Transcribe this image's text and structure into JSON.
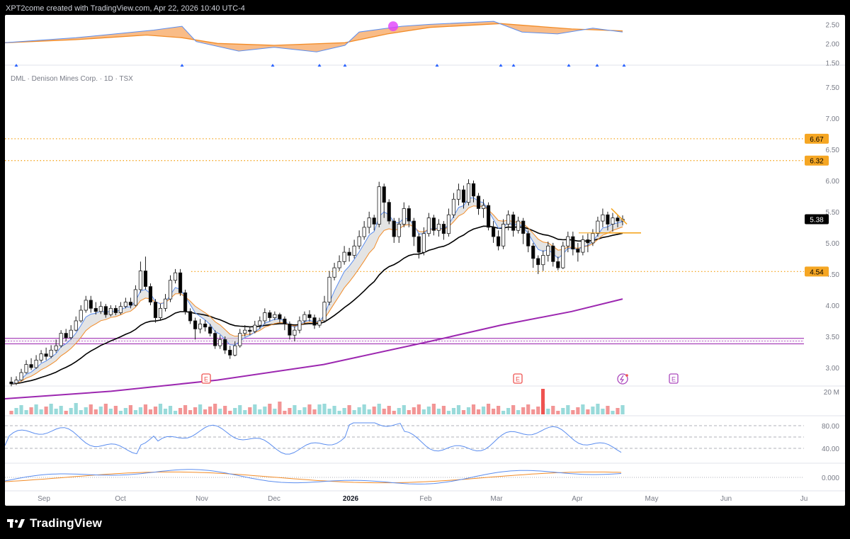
{
  "header": {
    "attribution": "XPT2come created with TradingView.com, Apr 22, 2026 10:40 UTC-4"
  },
  "legend": {
    "symbol_line": "DML · Denison Mines Corp. · 1D · TSX"
  },
  "footer": {
    "brand": "TradingView"
  },
  "colors": {
    "bull": "#ffffff",
    "bear": "#000000",
    "candle_outline": "#1e1e1e",
    "ema_fast": "#5b8def",
    "ema_slow": "#f28c28",
    "sma_black": "#000000",
    "sma_purple": "#9c27b0",
    "level_orange": "#f5a623",
    "band_purple": "#9c27b0",
    "vol_up": "#7fd1d1",
    "vol_down": "#ef7b7b",
    "spike": "#ef5350"
  },
  "chart_data": {
    "type": "candlestick",
    "price_axis": {
      "range": [
        2.75,
        7.6
      ],
      "ticks": [
        "7.50",
        "7.00",
        "6.50",
        "6.00",
        "5.50",
        "5.00",
        "4.50",
        "4.00",
        "3.50",
        "3.00"
      ]
    },
    "levels": [
      {
        "label": "6.67",
        "value": 6.67,
        "style": "dotted"
      },
      {
        "label": "6.32",
        "value": 6.32,
        "style": "dotted"
      },
      {
        "label": "4.54",
        "value": 4.54,
        "style": "dotted"
      }
    ],
    "last_price": {
      "label": "5.38",
      "value": 5.38
    },
    "support_band": [
      3.38,
      3.47
    ],
    "x_axis": {
      "labels": [
        "Sep",
        "Oct",
        "Nov",
        "Dec",
        "2026",
        "Feb",
        "Mar",
        "Apr",
        "May",
        "Jun",
        "Ju"
      ]
    },
    "event_markers": [
      "E",
      "E",
      "E"
    ],
    "candles_approx": [
      [
        2.77,
        2.74,
        2.85,
        2.7
      ],
      [
        2.75,
        2.8,
        2.86,
        2.72
      ],
      [
        2.8,
        2.92,
        2.98,
        2.78
      ],
      [
        2.92,
        3.05,
        3.12,
        2.9
      ],
      [
        3.05,
        3.0,
        3.15,
        2.96
      ],
      [
        3.0,
        3.12,
        3.2,
        2.98
      ],
      [
        3.12,
        3.22,
        3.28,
        3.08
      ],
      [
        3.22,
        3.18,
        3.32,
        3.12
      ],
      [
        3.18,
        3.28,
        3.36,
        3.15
      ],
      [
        3.28,
        3.35,
        3.45,
        3.24
      ],
      [
        3.35,
        3.55,
        3.6,
        3.32
      ],
      [
        3.55,
        3.48,
        3.62,
        3.42
      ],
      [
        3.48,
        3.6,
        3.68,
        3.45
      ],
      [
        3.6,
        3.75,
        3.82,
        3.58
      ],
      [
        3.75,
        3.92,
        4.0,
        3.72
      ],
      [
        3.92,
        4.08,
        4.15,
        3.88
      ],
      [
        4.08,
        3.95,
        4.15,
        3.88
      ],
      [
        3.95,
        3.9,
        4.05,
        3.85
      ],
      [
        3.9,
        3.98,
        4.06,
        3.86
      ],
      [
        3.98,
        3.85,
        4.02,
        3.8
      ],
      [
        3.85,
        3.95,
        4.0,
        3.82
      ],
      [
        3.95,
        3.88,
        4.0,
        3.84
      ],
      [
        3.88,
        3.98,
        4.05,
        3.85
      ],
      [
        3.98,
        4.05,
        4.12,
        3.95
      ],
      [
        4.05,
        4.0,
        4.12,
        3.95
      ],
      [
        4.0,
        4.25,
        4.32,
        3.98
      ],
      [
        4.25,
        4.55,
        4.7,
        4.2
      ],
      [
        4.55,
        4.3,
        4.78,
        4.25
      ],
      [
        4.3,
        4.05,
        4.35,
        4.0
      ],
      [
        4.05,
        3.8,
        4.1,
        3.72
      ],
      [
        3.8,
        3.95,
        4.02,
        3.75
      ],
      [
        3.95,
        4.1,
        4.18,
        3.9
      ],
      [
        4.1,
        4.4,
        4.48,
        4.05
      ],
      [
        4.4,
        4.52,
        4.58,
        4.35
      ],
      [
        4.52,
        4.2,
        4.58,
        4.15
      ],
      [
        4.2,
        3.9,
        4.25,
        3.85
      ],
      [
        3.9,
        3.75,
        3.95,
        3.7
      ],
      [
        3.75,
        3.62,
        3.8,
        3.45
      ],
      [
        3.62,
        3.7,
        3.78,
        3.55
      ],
      [
        3.7,
        3.65,
        3.76,
        3.58
      ],
      [
        3.65,
        3.55,
        3.7,
        3.5
      ],
      [
        3.55,
        3.35,
        3.6,
        3.3
      ],
      [
        3.35,
        3.45,
        3.52,
        3.3
      ],
      [
        3.45,
        3.28,
        3.5,
        3.22
      ],
      [
        3.28,
        3.2,
        3.35,
        3.14
      ],
      [
        3.2,
        3.35,
        3.42,
        3.18
      ],
      [
        3.35,
        3.55,
        3.62,
        3.32
      ],
      [
        3.55,
        3.6,
        3.68,
        3.5
      ],
      [
        3.6,
        3.58,
        3.66,
        3.52
      ],
      [
        3.58,
        3.68,
        3.75,
        3.55
      ],
      [
        3.68,
        3.75,
        3.82,
        3.62
      ],
      [
        3.75,
        3.88,
        3.95,
        3.7
      ],
      [
        3.88,
        3.8,
        3.92,
        3.74
      ],
      [
        3.8,
        3.85,
        3.9,
        3.76
      ],
      [
        3.85,
        3.78,
        3.88,
        3.72
      ],
      [
        3.78,
        3.7,
        3.82,
        3.6
      ],
      [
        3.7,
        3.52,
        3.74,
        3.45
      ],
      [
        3.52,
        3.6,
        3.66,
        3.42
      ],
      [
        3.6,
        3.75,
        3.82,
        3.55
      ],
      [
        3.75,
        3.85,
        3.9,
        3.7
      ],
      [
        3.85,
        3.8,
        3.92,
        3.74
      ],
      [
        3.8,
        3.68,
        3.85,
        3.62
      ],
      [
        3.68,
        3.75,
        3.8,
        3.64
      ],
      [
        3.75,
        4.05,
        4.15,
        3.72
      ],
      [
        4.05,
        4.45,
        4.55,
        4.0
      ],
      [
        4.45,
        4.6,
        4.68,
        4.4
      ],
      [
        4.6,
        4.7,
        4.8,
        4.55
      ],
      [
        4.7,
        4.85,
        4.95,
        4.65
      ],
      [
        4.85,
        4.8,
        4.92,
        4.7
      ],
      [
        4.8,
        4.95,
        5.05,
        4.75
      ],
      [
        4.95,
        5.1,
        5.2,
        4.9
      ],
      [
        5.1,
        5.25,
        5.35,
        5.05
      ],
      [
        5.25,
        5.4,
        5.5,
        5.15
      ],
      [
        5.4,
        5.3,
        5.45,
        5.2
      ],
      [
        5.3,
        5.9,
        5.98,
        5.25
      ],
      [
        5.9,
        5.65,
        5.95,
        5.4
      ],
      [
        5.65,
        5.35,
        5.7,
        5.3
      ],
      [
        5.35,
        5.1,
        5.4,
        5.0
      ],
      [
        5.1,
        5.3,
        5.4,
        5.0
      ],
      [
        5.3,
        5.55,
        5.65,
        5.25
      ],
      [
        5.55,
        5.35,
        5.6,
        5.25
      ],
      [
        5.35,
        5.1,
        5.4,
        4.95
      ],
      [
        5.1,
        4.85,
        5.15,
        4.75
      ],
      [
        4.85,
        5.15,
        5.25,
        4.8
      ],
      [
        5.15,
        5.4,
        5.48,
        5.1
      ],
      [
        5.4,
        5.2,
        5.45,
        5.12
      ],
      [
        5.2,
        5.3,
        5.38,
        5.1
      ],
      [
        5.3,
        5.15,
        5.35,
        5.05
      ],
      [
        5.15,
        5.45,
        5.55,
        5.1
      ],
      [
        5.45,
        5.7,
        5.8,
        5.4
      ],
      [
        5.7,
        5.85,
        5.95,
        5.6
      ],
      [
        5.85,
        5.65,
        5.92,
        5.55
      ],
      [
        5.65,
        5.95,
        6.02,
        5.6
      ],
      [
        5.95,
        5.75,
        6.0,
        5.65
      ],
      [
        5.75,
        5.55,
        5.8,
        5.45
      ],
      [
        5.55,
        5.6,
        5.7,
        5.4
      ],
      [
        5.6,
        5.25,
        5.65,
        5.2
      ],
      [
        5.25,
        5.1,
        5.35,
        5.0
      ],
      [
        5.1,
        4.95,
        5.2,
        4.88
      ],
      [
        4.95,
        5.3,
        5.38,
        4.9
      ],
      [
        5.3,
        5.45,
        5.52,
        5.2
      ],
      [
        5.45,
        5.2,
        5.5,
        5.1
      ],
      [
        5.2,
        5.35,
        5.42,
        5.15
      ],
      [
        5.35,
        5.15,
        5.4,
        4.98
      ],
      [
        5.15,
        4.95,
        5.2,
        4.85
      ],
      [
        4.95,
        4.75,
        5.0,
        4.6
      ],
      [
        4.75,
        4.65,
        4.8,
        4.5
      ],
      [
        4.65,
        4.8,
        4.88,
        4.55
      ],
      [
        4.8,
        4.95,
        5.02,
        4.7
      ],
      [
        4.95,
        4.7,
        5.0,
        4.62
      ],
      [
        4.7,
        4.6,
        4.78,
        4.56
      ],
      [
        4.6,
        4.95,
        5.02,
        4.58
      ],
      [
        4.95,
        5.1,
        5.18,
        4.85
      ],
      [
        5.1,
        4.9,
        5.18,
        4.8
      ],
      [
        4.9,
        4.85,
        5.0,
        4.7
      ],
      [
        4.85,
        5.05,
        5.12,
        4.8
      ],
      [
        5.05,
        5.0,
        5.15,
        4.85
      ],
      [
        5.0,
        5.15,
        5.22,
        4.95
      ],
      [
        5.15,
        5.35,
        5.42,
        5.1
      ],
      [
        5.35,
        5.45,
        5.55,
        5.25
      ],
      [
        5.45,
        5.3,
        5.5,
        5.2
      ],
      [
        5.3,
        5.4,
        5.48,
        5.18
      ],
      [
        5.4,
        5.35,
        5.45,
        5.25
      ],
      [
        5.35,
        5.38,
        5.44,
        5.28
      ]
    ],
    "indicators": {
      "top_axis": {
        "ticks": [
          "2.50",
          "2.00",
          "1.50"
        ]
      },
      "volume": {
        "label": "20 M"
      },
      "rsi": {
        "ticks": [
          "80.00",
          "40.00"
        ]
      },
      "macd": {
        "ticks": [
          "0.000"
        ]
      }
    }
  }
}
